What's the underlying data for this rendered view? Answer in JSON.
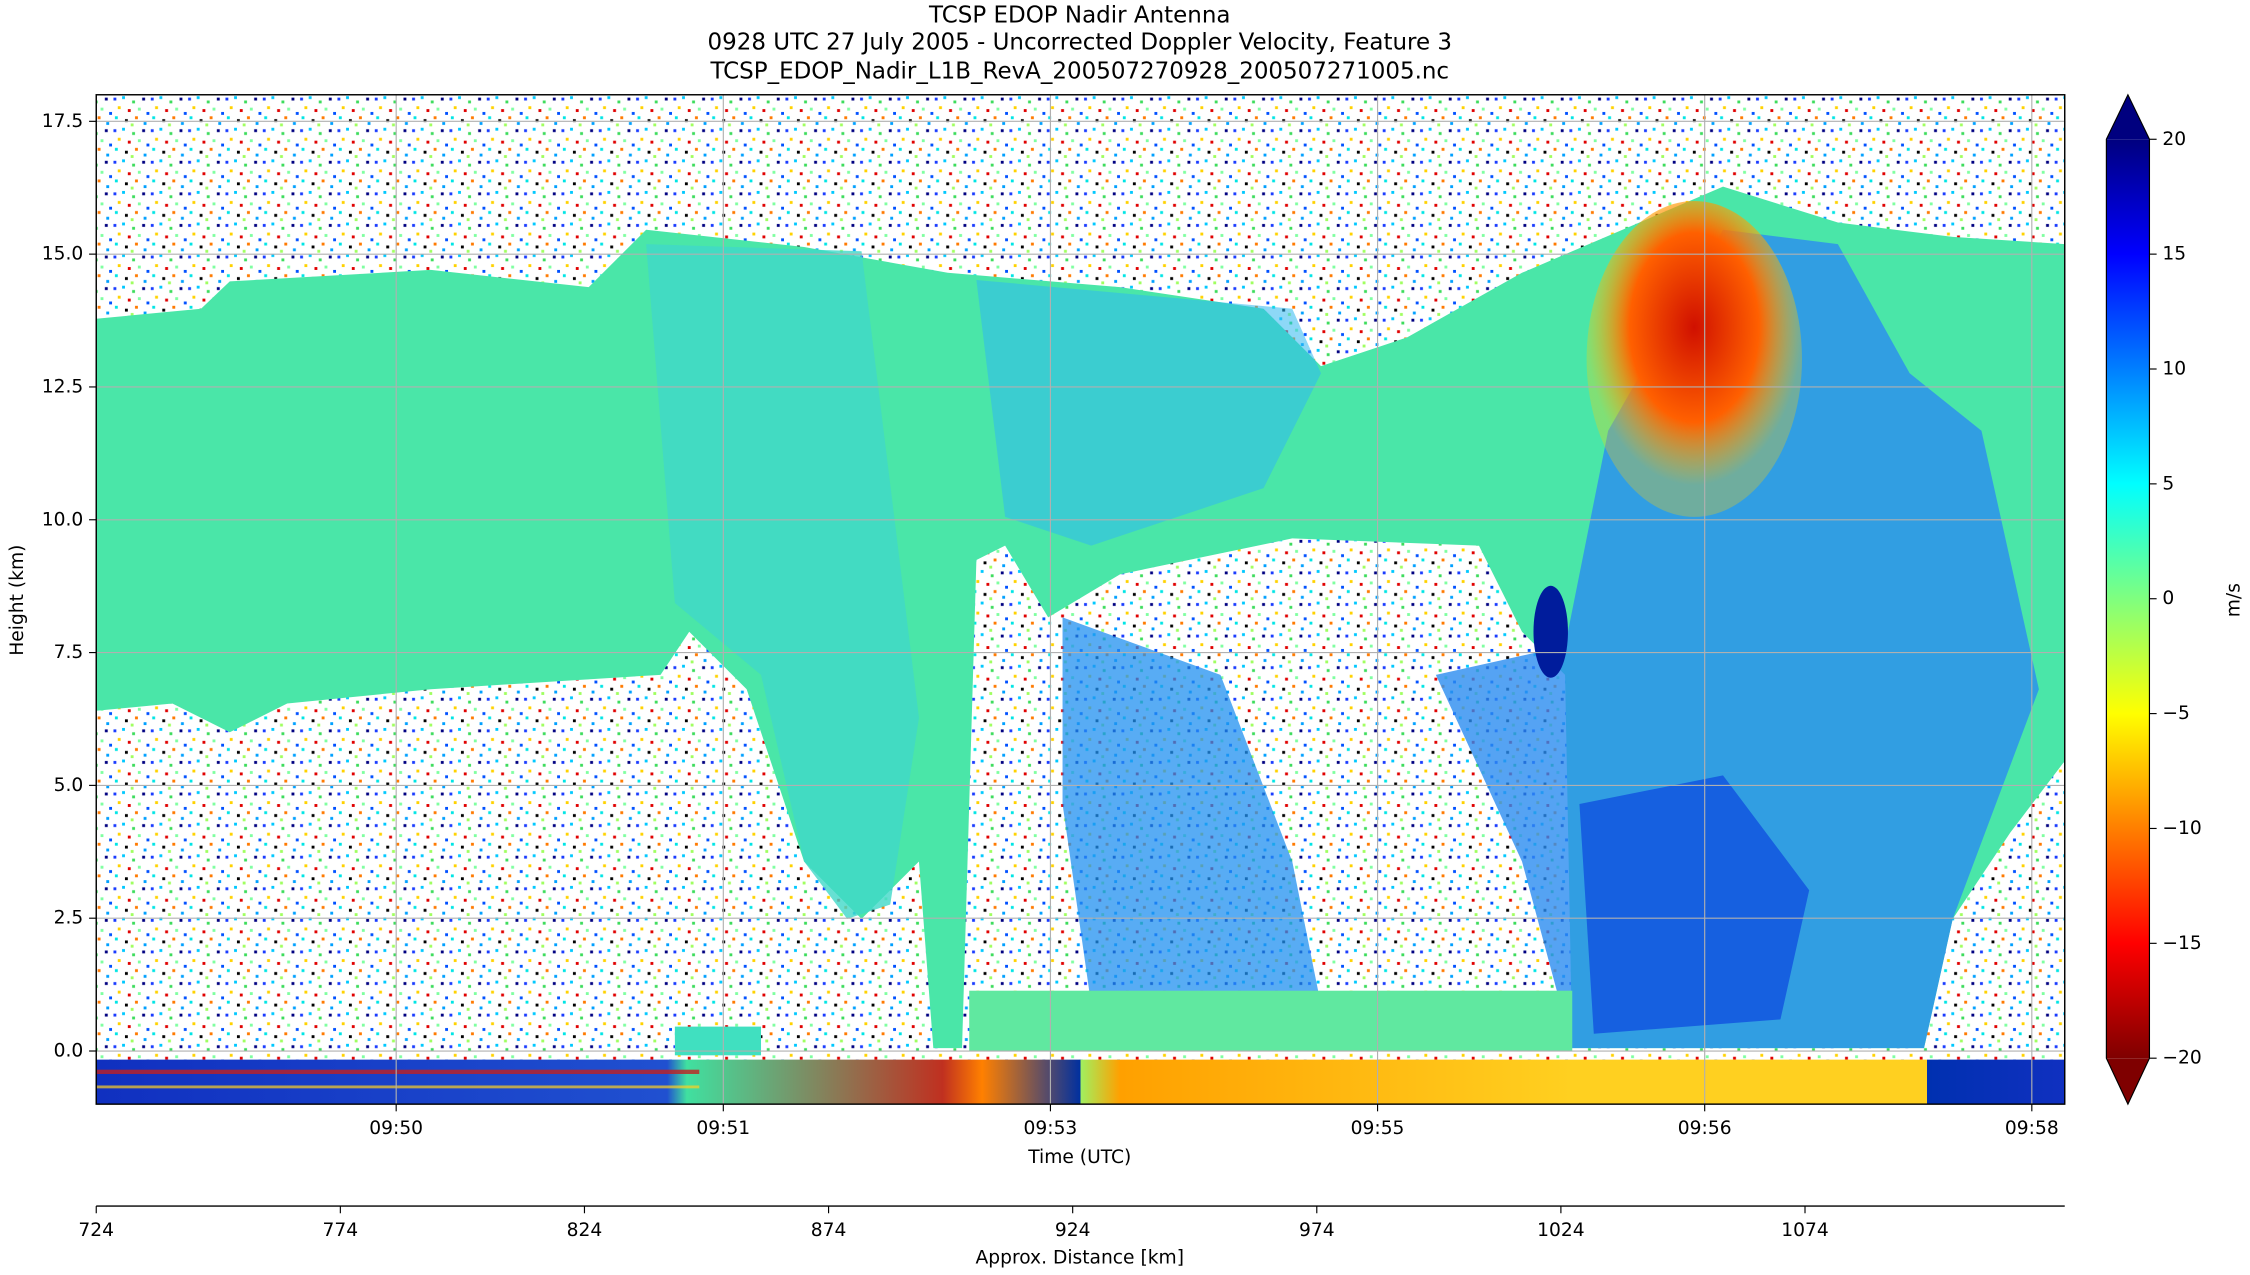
{
  "chart_data": {
    "type": "heatmap",
    "title": "TCSP EDOP Nadir Antenna",
    "subtitle": "0928 UTC 27 July 2005 - Uncorrected Doppler Velocity, Feature 3",
    "source_file": "TCSP_EDOP_Nadir_L1B_RevA_200507270928_200507271005.nc",
    "xlabel": "Time (UTC)",
    "ylabel": "Height (km)",
    "x2label": "Approx. Distance [km]",
    "xlim": [
      48.533,
      58.161
    ],
    "xticks": [
      {
        "value": 50.0,
        "label": "09:50"
      },
      {
        "value": 51.6,
        "label": "09:51"
      },
      {
        "value": 53.2,
        "label": "09:53"
      },
      {
        "value": 54.8,
        "label": "09:55"
      },
      {
        "value": 56.4,
        "label": "09:56"
      },
      {
        "value": 58.0,
        "label": "09:58"
      }
    ],
    "x2lim": [
      724,
      1127.2
    ],
    "x2ticks": [
      724,
      774,
      824,
      874,
      924,
      974,
      1024,
      1074
    ],
    "ylim": [
      -1,
      18
    ],
    "yticks": [
      {
        "value": 0,
        "label": "0.0"
      },
      2.5,
      {
        "value": 5,
        "label": "5.0"
      },
      7.5,
      {
        "value": 10,
        "label": "10.0"
      },
      12.5,
      {
        "value": 15,
        "label": "15.0"
      },
      17.5
    ],
    "grid": true,
    "colorbar": {
      "label": "m/s",
      "colormap": "jet",
      "extend": "both",
      "lim": [
        -20,
        20
      ],
      "ticks": [
        {
          "value": -20,
          "label": "−20"
        },
        {
          "value": -15,
          "label": "−15"
        },
        {
          "value": -10,
          "label": "−10"
        },
        {
          "value": -5,
          "label": "−5"
        },
        0,
        5,
        10,
        15,
        20
      ]
    }
  }
}
